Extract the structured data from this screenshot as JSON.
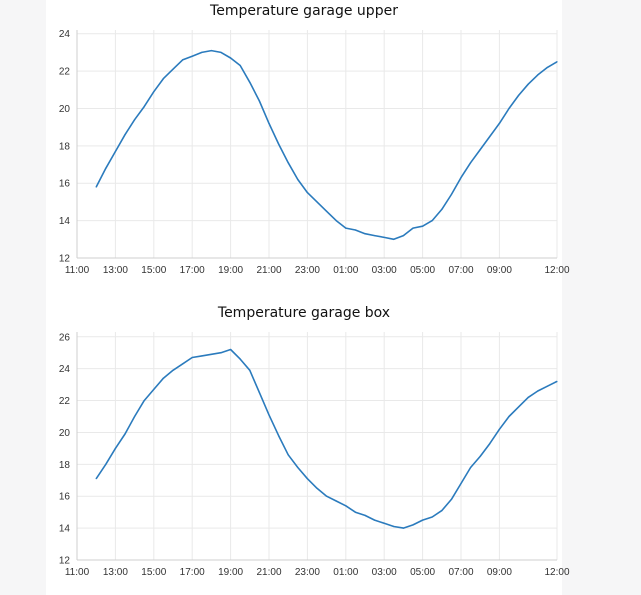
{
  "chart_data": [
    {
      "type": "line",
      "title": "Temperature garage upper",
      "xlabel": "",
      "ylabel": "",
      "x_ticks": [
        "11:00",
        "13:00",
        "15:00",
        "17:00",
        "19:00",
        "21:00",
        "23:00",
        "01:00",
        "03:00",
        "05:00",
        "07:00",
        "09:00",
        "12:00"
      ],
      "y_ticks": [
        12,
        14,
        16,
        18,
        20,
        22,
        24
      ],
      "xlim": [
        0,
        25
      ],
      "ylim": [
        12,
        24.2
      ],
      "grid": true,
      "x_unit": "hours since 11:00",
      "series": [
        {
          "name": "",
          "x": [
            1.0,
            1.5,
            2.0,
            2.5,
            3.0,
            3.5,
            4.0,
            4.5,
            5.0,
            5.5,
            6.0,
            6.5,
            7.0,
            7.5,
            8.0,
            8.5,
            9.0,
            9.5,
            10.0,
            10.5,
            11.0,
            11.5,
            12.0,
            12.5,
            13.0,
            13.5,
            14.0,
            14.5,
            15.0,
            15.5,
            16.0,
            16.5,
            17.0,
            17.5,
            18.0,
            18.5,
            19.0,
            19.5,
            20.0,
            20.5,
            21.0,
            21.5,
            22.0,
            22.5,
            23.0,
            23.5,
            24.0,
            24.5,
            25.0
          ],
          "y": [
            15.8,
            16.8,
            17.7,
            18.6,
            19.4,
            20.1,
            20.9,
            21.6,
            22.1,
            22.6,
            22.8,
            23.0,
            23.1,
            23.0,
            22.7,
            22.3,
            21.4,
            20.4,
            19.2,
            18.1,
            17.1,
            16.2,
            15.5,
            15.0,
            14.5,
            14.0,
            13.6,
            13.5,
            13.3,
            13.2,
            13.1,
            13.0,
            13.2,
            13.6,
            13.7,
            14.0,
            14.6,
            15.4,
            16.3,
            17.1,
            17.8,
            18.5,
            19.2,
            20.0,
            20.7,
            21.3,
            21.8,
            22.2,
            22.5
          ]
        }
      ]
    },
    {
      "type": "line",
      "title": "Temperature garage box",
      "xlabel": "",
      "ylabel": "",
      "x_ticks": [
        "11:00",
        "13:00",
        "15:00",
        "17:00",
        "19:00",
        "21:00",
        "23:00",
        "01:00",
        "03:00",
        "05:00",
        "07:00",
        "09:00",
        "12:00"
      ],
      "y_ticks": [
        12,
        14,
        16,
        18,
        20,
        22,
        24,
        26
      ],
      "xlim": [
        0,
        25
      ],
      "ylim": [
        12,
        26.3
      ],
      "grid": true,
      "x_unit": "hours since 11:00",
      "series": [
        {
          "name": "",
          "x": [
            1.0,
            1.5,
            2.0,
            2.5,
            3.0,
            3.5,
            4.0,
            4.5,
            5.0,
            5.5,
            6.0,
            6.5,
            7.0,
            7.5,
            8.0,
            8.5,
            9.0,
            9.5,
            10.0,
            10.5,
            11.0,
            11.5,
            12.0,
            12.5,
            13.0,
            13.5,
            14.0,
            14.5,
            15.0,
            15.5,
            16.0,
            16.5,
            17.0,
            17.5,
            18.0,
            18.5,
            19.0,
            19.5,
            20.0,
            20.5,
            21.0,
            21.5,
            22.0,
            22.5,
            23.0,
            23.5,
            24.0,
            24.5,
            25.0
          ],
          "y": [
            17.1,
            18.0,
            19.0,
            19.9,
            21.0,
            22.0,
            22.7,
            23.4,
            23.9,
            24.3,
            24.7,
            24.8,
            24.9,
            25.0,
            25.2,
            24.6,
            23.9,
            22.5,
            21.1,
            19.8,
            18.6,
            17.8,
            17.1,
            16.5,
            16.0,
            15.7,
            15.4,
            15.0,
            14.8,
            14.5,
            14.3,
            14.1,
            14.0,
            14.2,
            14.5,
            14.7,
            15.1,
            15.8,
            16.8,
            17.8,
            18.5,
            19.3,
            20.2,
            21.0,
            21.6,
            22.2,
            22.6,
            22.9,
            23.2
          ]
        }
      ]
    }
  ]
}
